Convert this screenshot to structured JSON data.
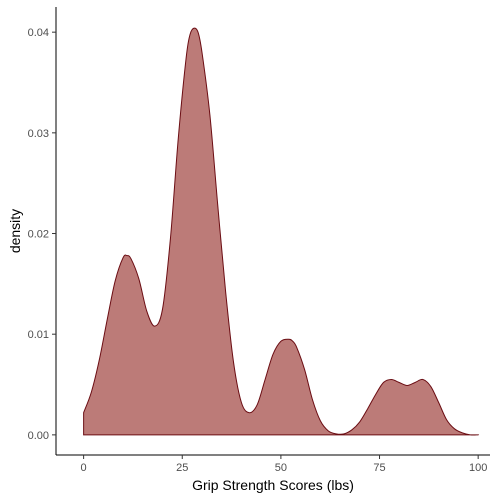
{
  "chart_data": {
    "type": "area",
    "title": "",
    "xlabel": "Grip Strength Scores (lbs)",
    "ylabel": "density",
    "xlim": [
      -7,
      103
    ],
    "ylim": [
      -0.002,
      0.0425
    ],
    "x_ticks": [
      0,
      25,
      50,
      75,
      100
    ],
    "x_tick_labels": [
      "0",
      "25",
      "50",
      "75",
      "100"
    ],
    "y_ticks": [
      0,
      0.01,
      0.02,
      0.03,
      0.04
    ],
    "y_tick_labels": [
      "0.00",
      "0.01",
      "0.02",
      "0.03",
      "0.04"
    ],
    "grid": false,
    "legend": "none",
    "fill_color": "#bc7b78",
    "line_color": "#6b0d13",
    "series": [
      {
        "x": [
          0,
          2,
          4,
          6,
          8,
          10,
          11,
          12,
          14,
          16,
          18,
          20,
          22,
          24,
          26,
          27,
          28,
          29,
          30,
          32,
          34,
          36,
          38,
          40,
          42,
          44,
          46,
          48,
          50,
          52,
          53,
          54,
          56,
          58,
          60,
          62,
          64,
          66,
          68,
          70,
          72,
          74,
          76,
          78,
          80,
          82,
          84,
          86,
          88,
          90,
          92,
          94,
          96,
          98,
          100
        ],
        "y": [
          0.0022,
          0.0043,
          0.0075,
          0.0115,
          0.0153,
          0.0176,
          0.0178,
          0.0175,
          0.0155,
          0.0123,
          0.0108,
          0.0125,
          0.0195,
          0.0295,
          0.0375,
          0.0398,
          0.0404,
          0.04,
          0.038,
          0.0318,
          0.0228,
          0.0142,
          0.0072,
          0.0032,
          0.0022,
          0.003,
          0.0055,
          0.008,
          0.0093,
          0.0095,
          0.0093,
          0.0087,
          0.0065,
          0.0035,
          0.0014,
          0.0004,
          0.0001,
          0.0001,
          0.0005,
          0.0013,
          0.0026,
          0.004,
          0.0052,
          0.0055,
          0.0052,
          0.0049,
          0.0052,
          0.0055,
          0.0048,
          0.0032,
          0.0015,
          0.0006,
          0.0002,
          0.0,
          0.0
        ]
      }
    ]
  }
}
